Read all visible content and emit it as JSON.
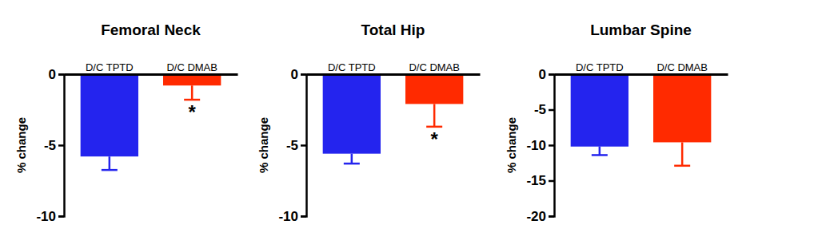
{
  "chart_data": [
    {
      "type": "bar",
      "title": "Femoral Neck",
      "y_label": "% change",
      "categories": [
        "D/C TPTD",
        "D/C DMAB"
      ],
      "values": [
        -5.8,
        -0.8
      ],
      "errors": [
        0.95,
        1.0
      ],
      "colors": [
        "#2424ee",
        "#ff2a00"
      ],
      "ylim": [
        -10,
        0
      ],
      "yticks": [
        -10,
        -5,
        0
      ],
      "annotations": [
        {
          "x": "D/C DMAB",
          "text": "*"
        }
      ]
    },
    {
      "type": "bar",
      "title": "Total Hip",
      "y_label": "% change",
      "categories": [
        "D/C TPTD",
        "D/C DMAB"
      ],
      "values": [
        -5.6,
        -2.1
      ],
      "errors": [
        0.7,
        1.6
      ],
      "colors": [
        "#2424ee",
        "#ff2a00"
      ],
      "ylim": [
        -10,
        0
      ],
      "yticks": [
        -10,
        -5,
        0
      ],
      "annotations": [
        {
          "x": "D/C DMAB",
          "text": "*"
        }
      ]
    },
    {
      "type": "bar",
      "title": "Lumbar Spine",
      "y_label": "% change",
      "categories": [
        "D/C TPTD",
        "D/C DMAB"
      ],
      "values": [
        -10.2,
        -9.6
      ],
      "errors": [
        1.2,
        3.3
      ],
      "colors": [
        "#2424ee",
        "#ff2a00"
      ],
      "ylim": [
        -20,
        0
      ],
      "yticks": [
        -20,
        -15,
        -10,
        -5,
        0
      ]
    }
  ]
}
